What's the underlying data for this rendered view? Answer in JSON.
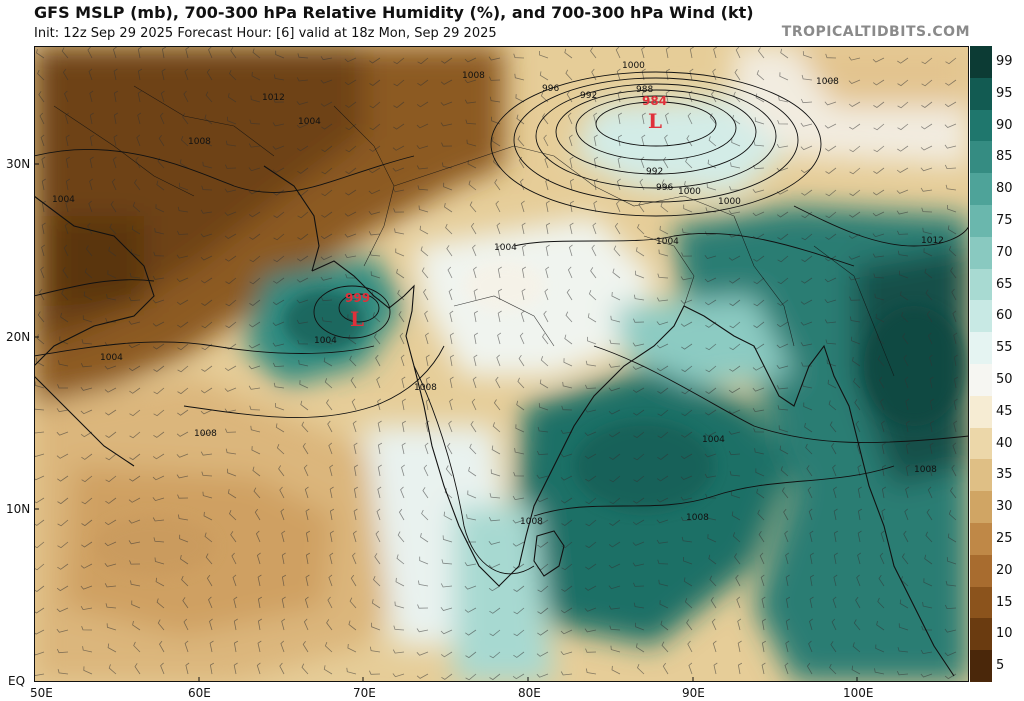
{
  "header": {
    "title": "GFS MSLP (mb), 700-300 hPa Relative Humidity (%), and 700-300 hPa Wind (kt)",
    "info": "Init: 12z Sep 29 2025   Forecast Hour: [6]   valid at 18z Mon, Sep 29 2025",
    "brand": "TROPICALTIDBITS.COM"
  },
  "map": {
    "lat_labels": [
      "30N",
      "20N",
      "10N",
      "EQ"
    ],
    "lon_labels": [
      "50E",
      "60E",
      "70E",
      "80E",
      "90E",
      "100E"
    ],
    "lows": [
      {
        "pressure": "984",
        "letter": "L"
      },
      {
        "pressure": "999",
        "letter": "L"
      }
    ],
    "isobar_labels": [
      "1008",
      "1012",
      "1004",
      "1008",
      "1004",
      "1004",
      "1004",
      "1008",
      "1008",
      "1008",
      "1004",
      "1008",
      "1008",
      "1004",
      "1012",
      "1008",
      "1000",
      "996",
      "992",
      "988",
      "996",
      "992",
      "1000",
      "1000",
      "1004"
    ]
  },
  "colorbar": {
    "labels": [
      "99",
      "95",
      "90",
      "85",
      "80",
      "75",
      "70",
      "65",
      "60",
      "55",
      "50",
      "45",
      "40",
      "35",
      "30",
      "25",
      "20",
      "15",
      "10",
      "5"
    ],
    "colors": [
      "#0c3b34",
      "#125b52",
      "#1f776d",
      "#358c82",
      "#4ea399",
      "#6ab7ad",
      "#89c9c0",
      "#a8dad2",
      "#c8e9e4",
      "#e5f4f2",
      "#f6f6f2",
      "#f6ecd3",
      "#ecd7a9",
      "#dfbf85",
      "#d0a564",
      "#bf8847",
      "#a86c2f",
      "#8b531c",
      "#6a3b10",
      "#4a270a"
    ]
  }
}
